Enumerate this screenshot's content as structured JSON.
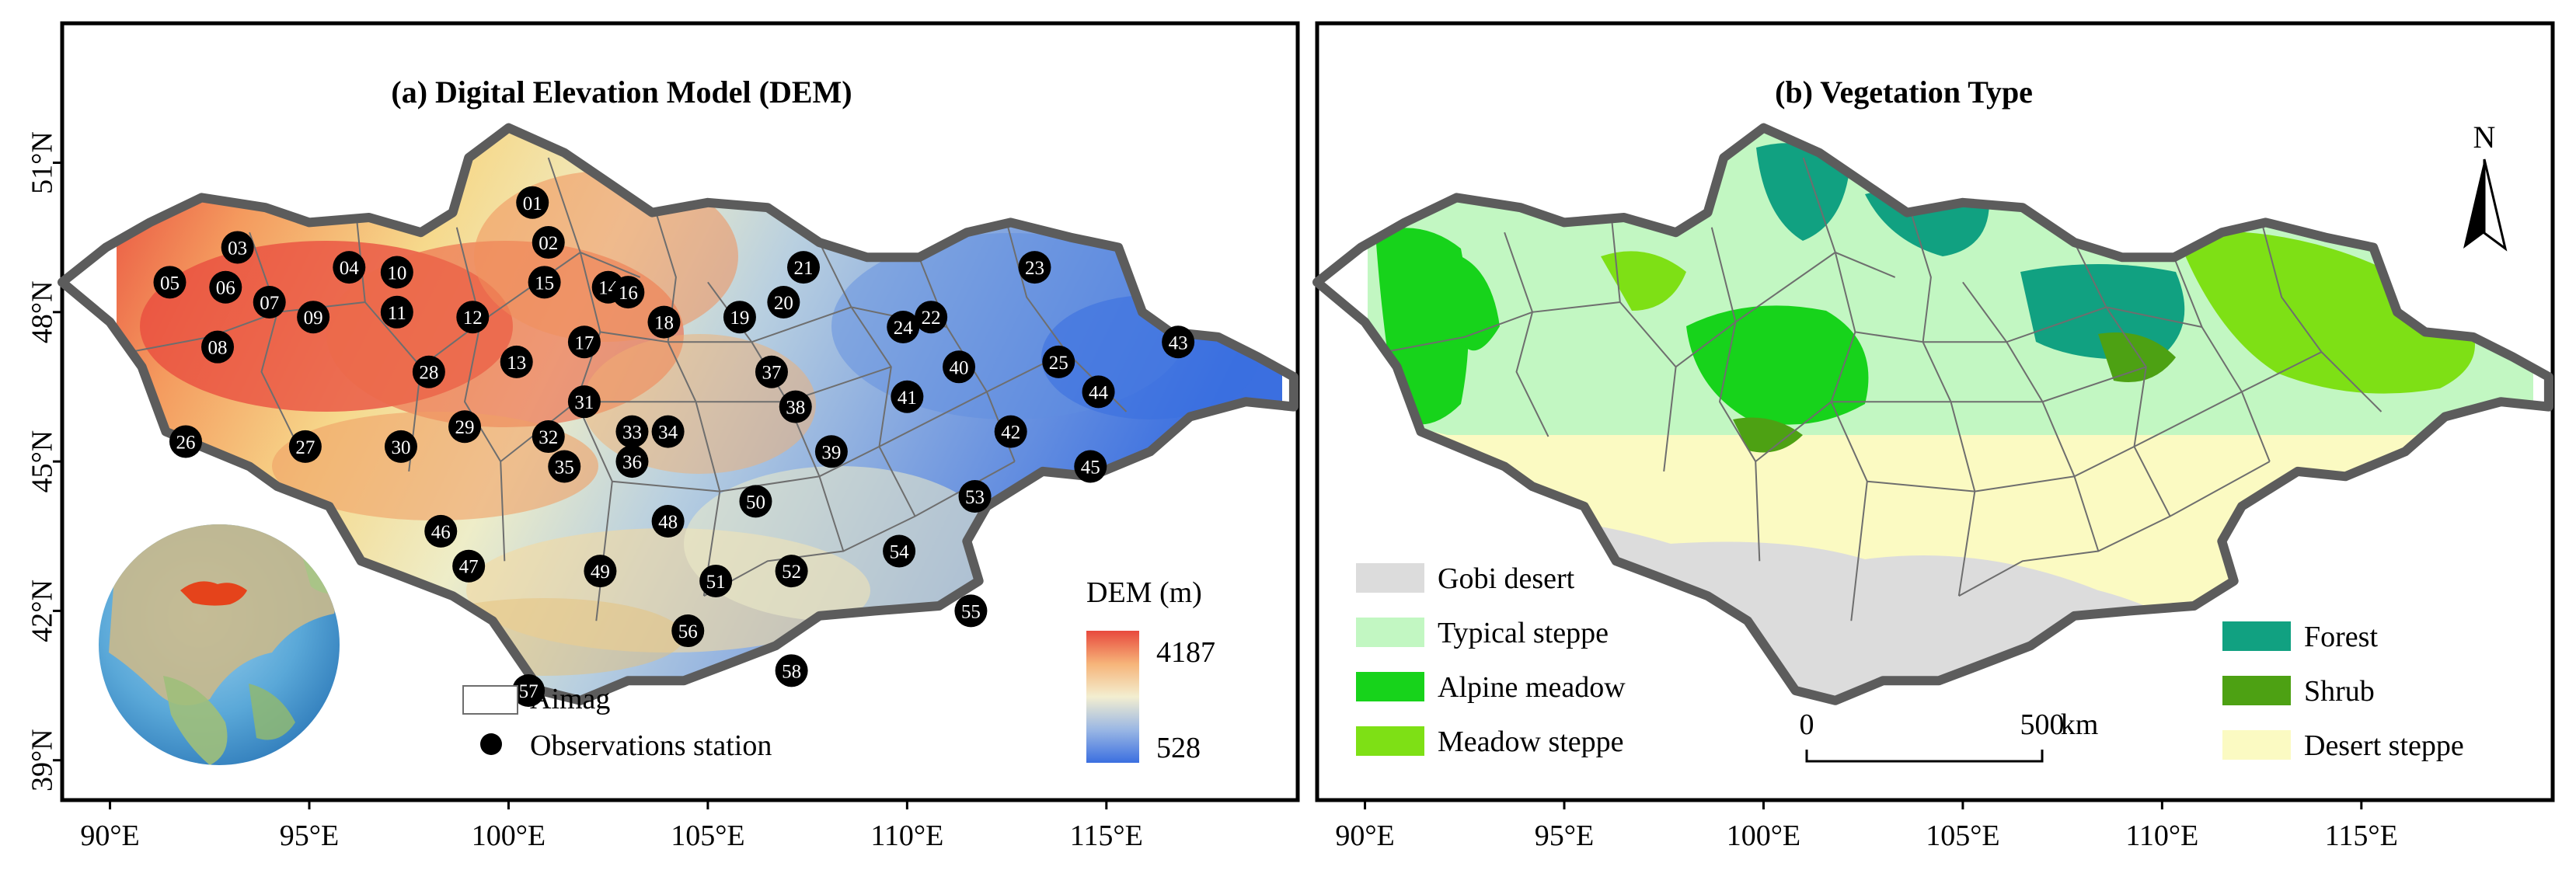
{
  "panel_a": {
    "title": "(a) Digital Elevation Model (DEM)",
    "legend": {
      "aimag_label": "Aimag",
      "station_label": "Observations station",
      "dem_title": "DEM (m)",
      "dem_max": "4187",
      "dem_min": "528",
      "ramp_colors": [
        "#e8493d",
        "#f49a5e",
        "#f6d98c",
        "#eeedc8",
        "#b8cfe0",
        "#7ea2e0",
        "#3b6fe0"
      ]
    },
    "stations": [
      {
        "id": "01",
        "lon": 100.6,
        "lat": 50.2
      },
      {
        "id": "02",
        "lon": 101.0,
        "lat": 49.4
      },
      {
        "id": "03",
        "lon": 93.2,
        "lat": 49.3
      },
      {
        "id": "04",
        "lon": 96.0,
        "lat": 48.9
      },
      {
        "id": "05",
        "lon": 91.5,
        "lat": 48.6
      },
      {
        "id": "06",
        "lon": 92.9,
        "lat": 48.5
      },
      {
        "id": "07",
        "lon": 94.0,
        "lat": 48.2
      },
      {
        "id": "08",
        "lon": 92.7,
        "lat": 47.3
      },
      {
        "id": "09",
        "lon": 95.1,
        "lat": 47.9
      },
      {
        "id": "10",
        "lon": 97.2,
        "lat": 48.8
      },
      {
        "id": "11",
        "lon": 97.2,
        "lat": 48.0
      },
      {
        "id": "12",
        "lon": 99.1,
        "lat": 47.9
      },
      {
        "id": "13",
        "lon": 100.2,
        "lat": 47.0
      },
      {
        "id": "14",
        "lon": 102.5,
        "lat": 48.5
      },
      {
        "id": "15",
        "lon": 100.9,
        "lat": 48.6
      },
      {
        "id": "16",
        "lon": 103.0,
        "lat": 48.4
      },
      {
        "id": "17",
        "lon": 101.9,
        "lat": 47.4
      },
      {
        "id": "18",
        "lon": 103.9,
        "lat": 47.8
      },
      {
        "id": "19",
        "lon": 105.8,
        "lat": 47.9
      },
      {
        "id": "20",
        "lon": 106.9,
        "lat": 48.2
      },
      {
        "id": "21",
        "lon": 107.4,
        "lat": 48.9
      },
      {
        "id": "22",
        "lon": 110.6,
        "lat": 47.9
      },
      {
        "id": "23",
        "lon": 113.2,
        "lat": 48.9
      },
      {
        "id": "24",
        "lon": 109.9,
        "lat": 47.7
      },
      {
        "id": "25",
        "lon": 113.8,
        "lat": 47.0
      },
      {
        "id": "26",
        "lon": 91.9,
        "lat": 45.4
      },
      {
        "id": "27",
        "lon": 94.9,
        "lat": 45.3
      },
      {
        "id": "28",
        "lon": 98.0,
        "lat": 46.8
      },
      {
        "id": "29",
        "lon": 98.9,
        "lat": 45.7
      },
      {
        "id": "30",
        "lon": 97.3,
        "lat": 45.3
      },
      {
        "id": "31",
        "lon": 101.9,
        "lat": 46.2
      },
      {
        "id": "32",
        "lon": 101.0,
        "lat": 45.5
      },
      {
        "id": "33",
        "lon": 103.1,
        "lat": 45.6
      },
      {
        "id": "34",
        "lon": 104.0,
        "lat": 45.6
      },
      {
        "id": "35",
        "lon": 101.4,
        "lat": 44.9
      },
      {
        "id": "36",
        "lon": 103.1,
        "lat": 45.0
      },
      {
        "id": "37",
        "lon": 106.6,
        "lat": 46.8
      },
      {
        "id": "38",
        "lon": 107.2,
        "lat": 46.1
      },
      {
        "id": "39",
        "lon": 108.1,
        "lat": 45.2
      },
      {
        "id": "40",
        "lon": 111.3,
        "lat": 46.9
      },
      {
        "id": "41",
        "lon": 110.0,
        "lat": 46.3
      },
      {
        "id": "42",
        "lon": 112.6,
        "lat": 45.6
      },
      {
        "id": "43",
        "lon": 116.8,
        "lat": 47.4
      },
      {
        "id": "44",
        "lon": 114.8,
        "lat": 46.4
      },
      {
        "id": "45",
        "lon": 114.6,
        "lat": 44.9
      },
      {
        "id": "46",
        "lon": 98.3,
        "lat": 43.6
      },
      {
        "id": "47",
        "lon": 99.0,
        "lat": 42.9
      },
      {
        "id": "48",
        "lon": 104.0,
        "lat": 43.8
      },
      {
        "id": "49",
        "lon": 102.3,
        "lat": 42.8
      },
      {
        "id": "50",
        "lon": 106.2,
        "lat": 44.2
      },
      {
        "id": "51",
        "lon": 105.2,
        "lat": 42.6
      },
      {
        "id": "52",
        "lon": 107.1,
        "lat": 42.8
      },
      {
        "id": "53",
        "lon": 111.7,
        "lat": 44.3
      },
      {
        "id": "54",
        "lon": 109.8,
        "lat": 43.2
      },
      {
        "id": "55",
        "lon": 111.6,
        "lat": 42.0
      },
      {
        "id": "56",
        "lon": 104.5,
        "lat": 41.6
      },
      {
        "id": "57",
        "lon": 100.5,
        "lat": 40.4
      },
      {
        "id": "58",
        "lon": 107.1,
        "lat": 40.8
      }
    ]
  },
  "panel_b": {
    "title": "(b) Vegetation Type",
    "north_label": "N",
    "scale_bar": {
      "start": "0",
      "end": "500",
      "unit": "km"
    },
    "legend": [
      {
        "label": "Gobi desert",
        "color": "#dcdcdc"
      },
      {
        "label": "Typical steppe",
        "color": "#c2f7c2"
      },
      {
        "label": "Alpine meadow",
        "color": "#17d31b"
      },
      {
        "label": "Meadow steppe",
        "color": "#7ee015"
      },
      {
        "label": "Forest",
        "color": "#11a181"
      },
      {
        "label": "Shrub",
        "color": "#4da113"
      },
      {
        "label": "Desert steppe",
        "color": "#fbfac2"
      }
    ]
  },
  "axes": {
    "x_ticks": [
      "90°E",
      "95°E",
      "100°E",
      "105°E",
      "110°E",
      "115°E"
    ],
    "x_tick_values": [
      90,
      95,
      100,
      105,
      110,
      115
    ],
    "y_ticks": [
      "39°N",
      "42°N",
      "45°N",
      "48°N",
      "51°N"
    ],
    "y_tick_values": [
      39,
      42,
      45,
      48,
      51
    ],
    "lon_range": [
      88.8,
      119.8
    ],
    "lat_range": [
      38.2,
      53.8
    ]
  },
  "colors": {
    "border": "#5c5c5c",
    "aimag_line": "#6e6e6e",
    "station_fill": "#000000",
    "station_text": "#ffffff"
  }
}
